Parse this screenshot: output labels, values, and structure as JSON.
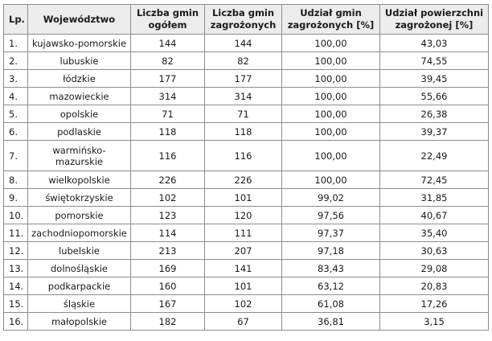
{
  "headers": {
    "lp": "Lp.",
    "voivodeship": "Województwo",
    "total": "Liczba gmin ogółem",
    "threatened": "Liczba gmin zagrożonych",
    "share": "Udział gmin zagrożonych [%]",
    "area_share": "Udział powierzchni zagrożonej [%]"
  },
  "rows": [
    {
      "lp": "1.",
      "name": "kujawsko-pomorskie",
      "total": "144",
      "threatened": "144",
      "share": "100,00",
      "area": "43,03"
    },
    {
      "lp": "2.",
      "name": "lubuskie",
      "total": "82",
      "threatened": "82",
      "share": "100,00",
      "area": "74,55"
    },
    {
      "lp": "3.",
      "name": "łódzkie",
      "total": "177",
      "threatened": "177",
      "share": "100,00",
      "area": "39,45"
    },
    {
      "lp": "4.",
      "name": "mazowieckie",
      "total": "314",
      "threatened": "314",
      "share": "100,00",
      "area": "55,66"
    },
    {
      "lp": "5.",
      "name": "opolskie",
      "total": "71",
      "threatened": "71",
      "share": "100,00",
      "area": "26,38"
    },
    {
      "lp": "6.",
      "name": "podlaskie",
      "total": "118",
      "threatened": "118",
      "share": "100,00",
      "area": "39,37"
    },
    {
      "lp": "7.",
      "name": "warmińsko-mazurskie",
      "total": "116",
      "threatened": "116",
      "share": "100,00",
      "area": "22,49"
    },
    {
      "lp": "8.",
      "name": "wielkopolskie",
      "total": "226",
      "threatened": "226",
      "share": "100,00",
      "area": "72,45"
    },
    {
      "lp": "9.",
      "name": "świętokrzyskie",
      "total": "102",
      "threatened": "101",
      "share": "99,02",
      "area": "31,85"
    },
    {
      "lp": "10.",
      "name": "pomorskie",
      "total": "123",
      "threatened": "120",
      "share": "97,56",
      "area": "40,67"
    },
    {
      "lp": "11.",
      "name": "zachodniopomorskie",
      "total": "114",
      "threatened": "111",
      "share": "97,37",
      "area": "35,40"
    },
    {
      "lp": "12.",
      "name": "lubelskie",
      "total": "213",
      "threatened": "207",
      "share": "97,18",
      "area": "30,63"
    },
    {
      "lp": "13.",
      "name": "dolnośląskie",
      "total": "169",
      "threatened": "141",
      "share": "83,43",
      "area": "29,08"
    },
    {
      "lp": "14.",
      "name": "podkarpackie",
      "total": "160",
      "threatened": "101",
      "share": "63,12",
      "area": "20,83"
    },
    {
      "lp": "15.",
      "name": "śląskie",
      "total": "167",
      "threatened": "102",
      "share": "61,08",
      "area": "17,26"
    },
    {
      "lp": "16.",
      "name": "małopolskie",
      "total": "182",
      "threatened": "67",
      "share": "36,81",
      "area": "3,15"
    }
  ]
}
